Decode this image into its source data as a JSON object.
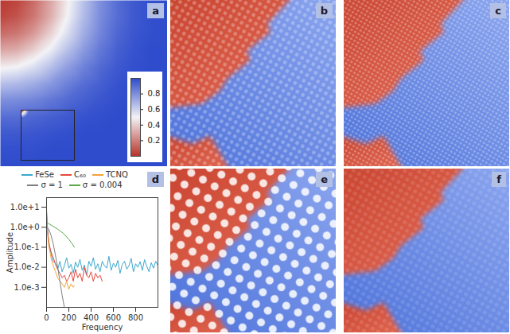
{
  "chart_data": [
    {
      "panel": "a",
      "type": "heatmap",
      "tick_labels": false,
      "cells": [
        [
          0.02,
          0.05,
          0.15,
          0.3,
          0.48,
          0.65,
          0.8,
          0.9,
          0.96,
          0.99,
          1
        ],
        [
          0.05,
          0.09,
          0.18,
          0.32,
          0.5,
          0.67,
          0.81,
          0.9,
          0.96,
          0.99,
          1
        ],
        [
          0.15,
          0.18,
          0.27,
          0.41,
          0.56,
          0.71,
          0.83,
          0.92,
          0.97,
          0.99,
          1
        ],
        [
          0.3,
          0.32,
          0.41,
          0.52,
          0.65,
          0.77,
          0.87,
          0.94,
          0.98,
          1,
          1
        ],
        [
          0.48,
          0.5,
          0.56,
          0.65,
          0.75,
          0.84,
          0.91,
          0.96,
          0.99,
          1,
          1
        ],
        [
          0.65,
          0.67,
          0.71,
          0.77,
          0.84,
          0.9,
          0.94,
          0.98,
          1,
          1,
          1
        ],
        [
          0.8,
          0.81,
          0.83,
          0.87,
          0.91,
          0.94,
          0.97,
          0.99,
          1,
          1,
          1
        ],
        [
          0.9,
          0.9,
          0.92,
          0.94,
          0.96,
          0.98,
          0.99,
          1,
          1,
          1,
          1
        ],
        [
          0.96,
          0.96,
          0.97,
          0.98,
          0.99,
          1,
          1,
          1,
          1,
          1,
          1
        ],
        [
          0.99,
          0.99,
          0.99,
          1,
          1,
          1,
          1,
          1,
          1,
          1,
          1
        ],
        [
          1,
          1,
          1,
          1,
          1,
          1,
          1,
          1,
          1,
          1,
          1
        ]
      ],
      "colorbar": {
        "range": [
          0,
          1
        ],
        "ticks": [
          0.2,
          0.4,
          0.6,
          0.8
        ]
      }
    },
    {
      "panel": "b",
      "type": "image"
    },
    {
      "panel": "c",
      "type": "image"
    },
    {
      "panel": "d",
      "type": "line",
      "x_label": "Frequency",
      "y_label": "Amplitude",
      "log": "y",
      "xlim": [
        0,
        1000
      ],
      "ylim": [
        0.0001,
        30
      ],
      "xticks": [
        0,
        200,
        400,
        600,
        800
      ],
      "yticks": [
        {
          "value": 0.001,
          "label": "1.0e-3"
        },
        {
          "value": 0.01,
          "label": "1.0e-2"
        },
        {
          "value": 0.1,
          "label": "1.0e-1"
        },
        {
          "value": 1,
          "label": "1.0e+0"
        },
        {
          "value": 10,
          "label": "1.0e+1"
        }
      ],
      "legend": "top",
      "series": [
        {
          "name": "FeSe",
          "color": "#3aa8cc",
          "x": [
            0,
            5,
            10,
            15,
            20,
            30,
            40,
            50,
            60,
            80,
            100,
            120,
            140,
            160,
            180,
            200,
            220,
            240,
            260,
            280,
            300,
            320,
            340,
            360,
            380,
            400,
            420,
            440,
            460,
            480,
            500,
            520,
            540,
            560,
            580,
            600,
            620,
            640,
            660,
            680,
            700,
            720,
            740,
            760,
            780,
            800,
            820,
            840,
            860,
            880,
            900,
            920,
            940,
            960,
            980,
            1000
          ],
          "values": [
            8,
            2,
            0.8,
            0.3,
            0.15,
            0.08,
            0.05,
            0.03,
            0.02,
            0.015,
            0.008,
            0.02,
            0.006,
            0.012,
            0.03,
            0.009,
            0.014,
            0.005,
            0.018,
            0.01,
            0.025,
            0.007,
            0.013,
            0.004,
            0.02,
            0.011,
            0.03,
            0.008,
            0.015,
            0.006,
            0.02,
            0.012,
            0.009,
            0.035,
            0.007,
            0.016,
            0.01,
            0.022,
            0.005,
            0.014,
            0.02,
            0.008,
            0.012,
            0.028,
            0.006,
            0.015,
            0.01,
            0.019,
            0.007,
            0.024,
            0.011,
            0.006,
            0.017,
            0.009,
            0.02,
            0.012
          ]
        },
        {
          "name": "C₆₀",
          "color": "#e8473b",
          "x": [
            0,
            5,
            10,
            20,
            30,
            40,
            60,
            80,
            100,
            120,
            140,
            160,
            180,
            200,
            220,
            240,
            260,
            280,
            300,
            320,
            340,
            360,
            380,
            400,
            420,
            440,
            460,
            480,
            500
          ],
          "values": [
            6,
            1.5,
            0.6,
            0.2,
            0.1,
            0.06,
            0.03,
            0.015,
            0.008,
            0.005,
            0.003,
            0.004,
            0.002,
            0.003,
            0.006,
            0.002,
            0.008,
            0.003,
            0.005,
            0.002,
            0.01,
            0.004,
            0.003,
            0.006,
            0.002,
            0.005,
            0.003,
            0.004,
            0.002
          ]
        },
        {
          "name": "TCNQ",
          "color": "#f2a33a",
          "x": [
            0,
            5,
            10,
            20,
            30,
            40,
            60,
            80,
            100,
            120,
            140,
            160,
            180,
            200,
            220,
            240,
            250
          ],
          "values": [
            3,
            1,
            0.4,
            0.12,
            0.06,
            0.03,
            0.012,
            0.006,
            0.003,
            0.002,
            0.0015,
            0.001,
            0.002,
            0.0008,
            0.0015,
            0.001,
            0.0012
          ]
        },
        {
          "name": "σ = 1",
          "color": "#7f7f7f",
          "x": [
            0,
            20,
            40,
            60,
            80,
            100,
            120,
            140,
            160
          ],
          "values": [
            1,
            0.8,
            0.4,
            0.15,
            0.04,
            0.01,
            0.002,
            0.0004,
            0.0001
          ]
        },
        {
          "name": "σ = 0.004",
          "color": "#5aa845",
          "x": [
            0,
            20,
            50,
            100,
            150,
            200,
            230,
            250
          ],
          "values": [
            1.6,
            1.5,
            1.2,
            0.8,
            0.5,
            0.25,
            0.15,
            0.1
          ]
        }
      ]
    },
    {
      "panel": "e",
      "type": "image"
    },
    {
      "panel": "f",
      "type": "image"
    }
  ]
}
